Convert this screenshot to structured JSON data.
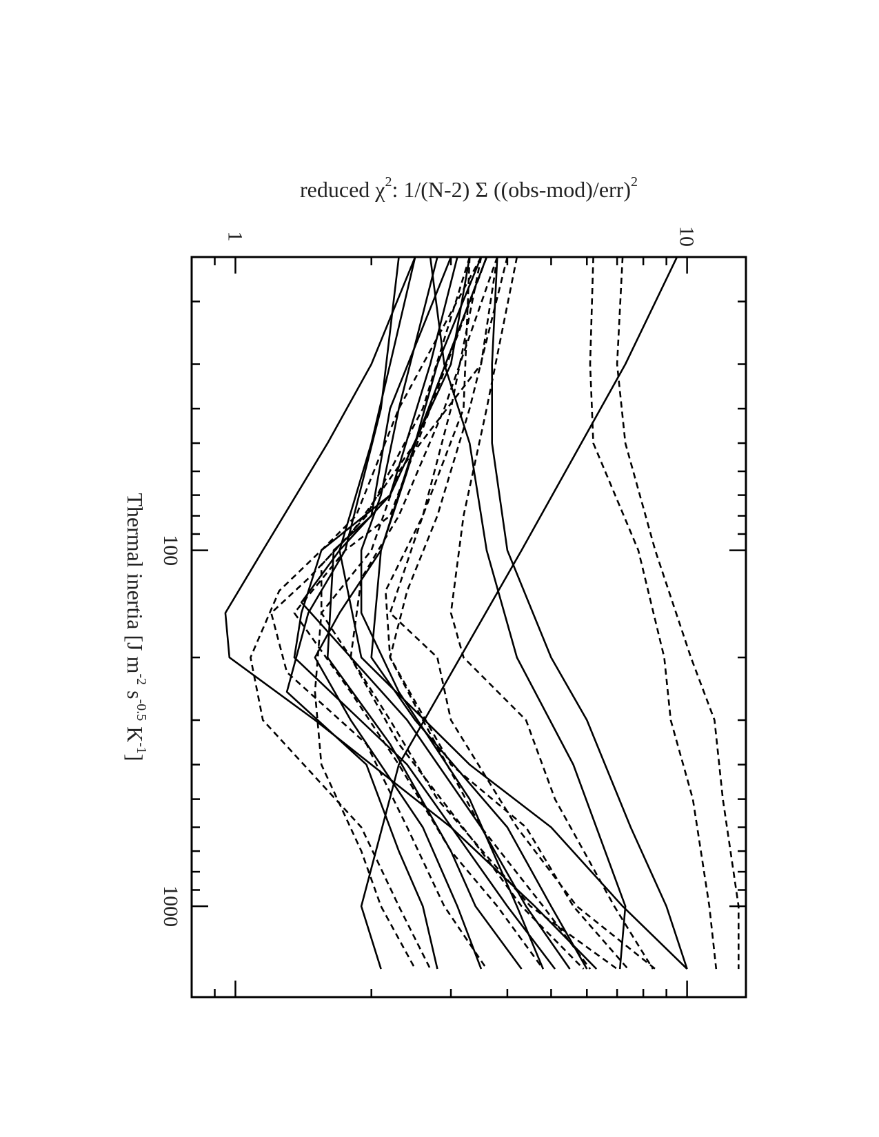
{
  "chart_data": {
    "type": "line",
    "orientation": "rotated 90 degrees clockwise",
    "xlabel": "Thermal inertia [J m^-2 s^-0.5 K^-1]",
    "xlabel_parts": {
      "main": "Thermal inertia [J m",
      "e1": "-2",
      "s": " s",
      "e2": "-0.5",
      "k": " K",
      "e3": "-1",
      "close": "]"
    },
    "ylabel": "reduced χ^2: 1/(N-2) Σ ((obs-mod)/err)^2",
    "ylabel_parts": {
      "main": "reduced χ",
      "e1": "2",
      "mid": ": 1/(N-2) Σ ((obs-mod)/err)",
      "e2": "2"
    },
    "x_scale": "log",
    "y_scale": "log",
    "xlim": [
      15,
      1800
    ],
    "ylim": [
      0.8,
      13.5
    ],
    "x_ticks": [
      100,
      1000
    ],
    "x_tick_labels": [
      "100",
      "1000"
    ],
    "y_ticks": [
      1,
      10
    ],
    "y_tick_labels": [
      "1",
      "10"
    ],
    "grid": false,
    "legend": "none",
    "series": [
      {
        "style": "solid",
        "x": [
          15,
          30,
          100,
          400,
          1000,
          1500
        ],
        "y": [
          9.5,
          7.3,
          4.3,
          2.3,
          1.9,
          2.1
        ]
      },
      {
        "style": "solid",
        "x": [
          15,
          30,
          50,
          100,
          200,
          400,
          1000,
          1500
        ],
        "y": [
          2.7,
          2.9,
          3.3,
          3.6,
          4.2,
          5.6,
          7.3,
          7.1
        ]
      },
      {
        "style": "solid",
        "x": [
          15,
          30,
          50,
          100,
          200,
          400,
          600,
          1000,
          1500
        ],
        "y": [
          2.5,
          2.2,
          2.0,
          1.7,
          1.9,
          3.3,
          5.0,
          7.2,
          10.0
        ]
      },
      {
        "style": "solid",
        "x": [
          15,
          30,
          50,
          100,
          150,
          200,
          300,
          600,
          1000,
          1500
        ],
        "y": [
          2.5,
          2.0,
          1.6,
          1.15,
          0.95,
          0.97,
          1.5,
          3.0,
          4.6,
          6.3
        ]
      },
      {
        "style": "solid",
        "x": [
          15,
          30,
          60,
          100,
          200,
          300,
          600,
          1000,
          1500
        ],
        "y": [
          3.5,
          2.8,
          2.4,
          2.1,
          2.0,
          2.5,
          4.0,
          5.0,
          6.0
        ]
      },
      {
        "style": "solid",
        "x": [
          15,
          30,
          70,
          100,
          150,
          200,
          400,
          1000,
          1500
        ],
        "y": [
          3.3,
          3.0,
          2.2,
          1.55,
          1.4,
          1.35,
          2.4,
          4.0,
          5.1
        ]
      },
      {
        "style": "solid",
        "x": [
          15,
          30,
          70,
          100,
          140,
          300,
          600,
          1000,
          1500
        ],
        "y": [
          3.1,
          2.7,
          2.2,
          1.7,
          1.4,
          2.4,
          3.5,
          4.4,
          5.5
        ]
      },
      {
        "style": "solid",
        "x": [
          15,
          40,
          70,
          100,
          150,
          250,
          500,
          1000,
          1500
        ],
        "y": [
          2.8,
          2.3,
          2.1,
          1.9,
          1.9,
          2.3,
          3.3,
          4.2,
          4.8
        ]
      },
      {
        "style": "solid",
        "x": [
          15,
          40,
          80,
          100,
          200,
          350,
          700,
          1000,
          1500
        ],
        "y": [
          3.0,
          2.2,
          2.0,
          1.65,
          1.6,
          2.2,
          3.0,
          3.4,
          4.3
        ]
      },
      {
        "style": "solid",
        "x": [
          15,
          50,
          100,
          150,
          200,
          300,
          600,
          1000,
          1500
        ],
        "y": [
          3.6,
          2.5,
          2.1,
          1.7,
          1.5,
          1.8,
          2.6,
          3.1,
          3.5
        ]
      },
      {
        "style": "solid",
        "x": [
          15,
          40,
          100,
          150,
          250,
          400,
          700,
          1000,
          1500
        ],
        "y": [
          2.3,
          2.1,
          1.75,
          1.45,
          1.3,
          1.95,
          2.3,
          2.6,
          2.8
        ]
      },
      {
        "style": "solid",
        "x": [
          15,
          30,
          50,
          100,
          200,
          300,
          600,
          1000,
          1500
        ],
        "y": [
          3.8,
          3.7,
          3.7,
          4.0,
          5.0,
          6.0,
          7.5,
          9.0,
          10.0
        ]
      },
      {
        "style": "dashed",
        "x": [
          15,
          30,
          50,
          100,
          200,
          300,
          500,
          1000,
          1500
        ],
        "y": [
          6.2,
          6.1,
          6.2,
          7.8,
          8.9,
          9.2,
          10.3,
          11.2,
          11.6
        ]
      },
      {
        "style": "dashed",
        "x": [
          15,
          30,
          50,
          100,
          200,
          300,
          500,
          1000,
          1500
        ],
        "y": [
          7.2,
          7.0,
          7.3,
          8.5,
          10.2,
          11.5,
          12.0,
          13.0,
          13.0
        ]
      },
      {
        "style": "dashed",
        "x": [
          15,
          30,
          60,
          100,
          150,
          250,
          400,
          700,
          1000,
          1500
        ],
        "y": [
          3.8,
          3.5,
          2.3,
          2.0,
          1.55,
          1.5,
          1.55,
          1.9,
          2.1,
          2.5
        ]
      },
      {
        "style": "dashed",
        "x": [
          15,
          40,
          80,
          150,
          200,
          300,
          600,
          1000,
          1500
        ],
        "y": [
          3.3,
          3.2,
          2.6,
          2.2,
          2.8,
          3.0,
          4.2,
          5.7,
          8.5
        ]
      },
      {
        "style": "dashed",
        "x": [
          15,
          40,
          80,
          150,
          200,
          300,
          500,
          1000,
          1500
        ],
        "y": [
          4.2,
          3.6,
          3.2,
          3.0,
          3.2,
          4.4,
          5.1,
          6.9,
          8.4
        ]
      },
      {
        "style": "dashed",
        "x": [
          15,
          40,
          80,
          130,
          200,
          300,
          600,
          1000,
          1500
        ],
        "y": [
          3.5,
          3.0,
          2.6,
          2.15,
          2.2,
          2.6,
          3.5,
          4.8,
          6.1
        ]
      },
      {
        "style": "dashed",
        "x": [
          15,
          40,
          80,
          130,
          200,
          400,
          600,
          1000,
          1500
        ],
        "y": [
          4.0,
          3.3,
          2.8,
          2.4,
          2.2,
          3.0,
          4.4,
          5.6,
          7.4
        ]
      },
      {
        "style": "dashed",
        "x": [
          15,
          40,
          80,
          120,
          200,
          300,
          500,
          1000,
          1500
        ],
        "y": [
          3.8,
          2.9,
          2.3,
          1.9,
          1.8,
          2.2,
          2.8,
          4.5,
          7.0
        ]
      },
      {
        "style": "dashed",
        "x": [
          15,
          40,
          80,
          110,
          150,
          200,
          350,
          700,
          1000,
          1500
        ],
        "y": [
          3.3,
          2.6,
          1.95,
          1.55,
          1.55,
          1.8,
          2.3,
          3.5,
          4.3,
          5.9
        ]
      },
      {
        "style": "dashed",
        "x": [
          15,
          40,
          80,
          100,
          150,
          250,
          400,
          700,
          1000,
          1500
        ],
        "y": [
          3.6,
          2.7,
          2.2,
          1.75,
          1.35,
          1.8,
          2.3,
          3.0,
          3.8,
          4.8
        ]
      },
      {
        "style": "dashed",
        "x": [
          15,
          40,
          80,
          100,
          130,
          200,
          300,
          600,
          1000,
          1500
        ],
        "y": [
          3.5,
          2.3,
          1.85,
          1.55,
          1.25,
          1.08,
          1.15,
          1.9,
          2.3,
          2.7
        ]
      },
      {
        "style": "dashed",
        "x": [
          15,
          50,
          90,
          120,
          150,
          220,
          350,
          600,
          1000,
          1500
        ],
        "y": [
          3.6,
          2.5,
          1.8,
          1.45,
          1.2,
          1.3,
          1.95,
          2.4,
          2.9,
          3.6
        ]
      }
    ]
  }
}
